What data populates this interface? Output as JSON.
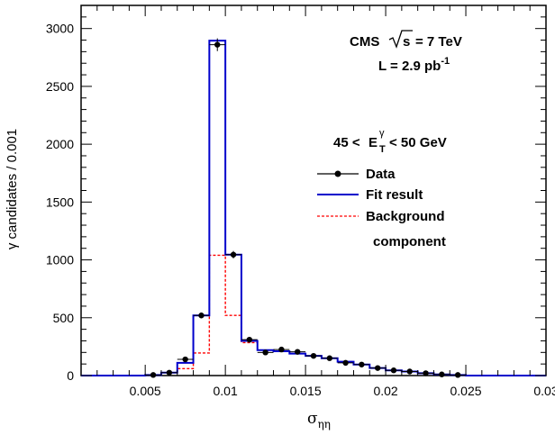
{
  "chart_data": {
    "type": "histogram",
    "xlabel": "σηη",
    "xlabel_base": "σ",
    "xlabel_sub": "ηη",
    "ylabel": "γ candidates / 0.001",
    "xlim": [
      0.001,
      0.03
    ],
    "ylim": [
      0,
      3200
    ],
    "x_ticks": [
      0.005,
      0.01,
      0.015,
      0.02,
      0.025,
      0.03
    ],
    "x_tick_labels": [
      "0.005",
      "0.01",
      "0.015",
      "0.02",
      "0.025",
      "0.03"
    ],
    "y_ticks": [
      0,
      500,
      1000,
      1500,
      2000,
      2500,
      3000
    ],
    "y_tick_labels": [
      "0",
      "500",
      "1000",
      "1500",
      "2000",
      "2500",
      "3000"
    ],
    "bin_width": 0.001,
    "bin_centers": [
      0.0015,
      0.0025,
      0.0035,
      0.0045,
      0.0055,
      0.0065,
      0.0075,
      0.0085,
      0.0095,
      0.0105,
      0.0115,
      0.0125,
      0.0135,
      0.0145,
      0.0155,
      0.0165,
      0.0175,
      0.0185,
      0.0195,
      0.0205,
      0.0215,
      0.0225,
      0.0235,
      0.0245,
      0.0255,
      0.0265,
      0.0275,
      0.0285,
      0.0295
    ],
    "series": [
      {
        "name": "Data",
        "style": "points-with-errors",
        "color": "#000000",
        "values": [
          0,
          0,
          0,
          0,
          5,
          25,
          140,
          520,
          2860,
          1045,
          310,
          200,
          225,
          205,
          170,
          150,
          110,
          95,
          65,
          45,
          35,
          20,
          10,
          5,
          0,
          0,
          0,
          0,
          0
        ],
        "errors": [
          0,
          0,
          0,
          0,
          3,
          6,
          13,
          25,
          55,
          32,
          18,
          14,
          15,
          14,
          13,
          12,
          11,
          10,
          8,
          7,
          6,
          5,
          3,
          2,
          0,
          0,
          0,
          0,
          0
        ]
      },
      {
        "name": "Fit result",
        "style": "step",
        "color": "#0000cc",
        "values": [
          0,
          0,
          0,
          0,
          5,
          25,
          110,
          520,
          2895,
          1045,
          300,
          220,
          210,
          190,
          170,
          150,
          120,
          95,
          65,
          45,
          35,
          20,
          10,
          5,
          0,
          0,
          0,
          0,
          0
        ]
      },
      {
        "name": "Background component",
        "style": "dashed-step",
        "color": "#ff0000",
        "values": [
          0,
          0,
          0,
          0,
          5,
          25,
          60,
          195,
          1040,
          520,
          285,
          220,
          210,
          190,
          170,
          150,
          120,
          95,
          65,
          45,
          35,
          20,
          10,
          5,
          0,
          0,
          0,
          0,
          0
        ]
      }
    ],
    "annotations": {
      "cms": "CMS",
      "sqrt_s": "s",
      "energy": "= 7 TeV",
      "lumi_main": "L = 2.9 pb",
      "lumi_exp": "-1",
      "et_low": "45 <",
      "et_sym": "E",
      "et_sup": "γ",
      "et_sub": "T",
      "et_high": "< 50 GeV"
    },
    "legend": {
      "position": "right",
      "entries": [
        {
          "label": "Data",
          "style": "points-with-errors"
        },
        {
          "label": "Fit result",
          "style": "step"
        },
        {
          "label": "Background",
          "label2": "component",
          "style": "dashed-step"
        }
      ]
    },
    "grid": false
  }
}
